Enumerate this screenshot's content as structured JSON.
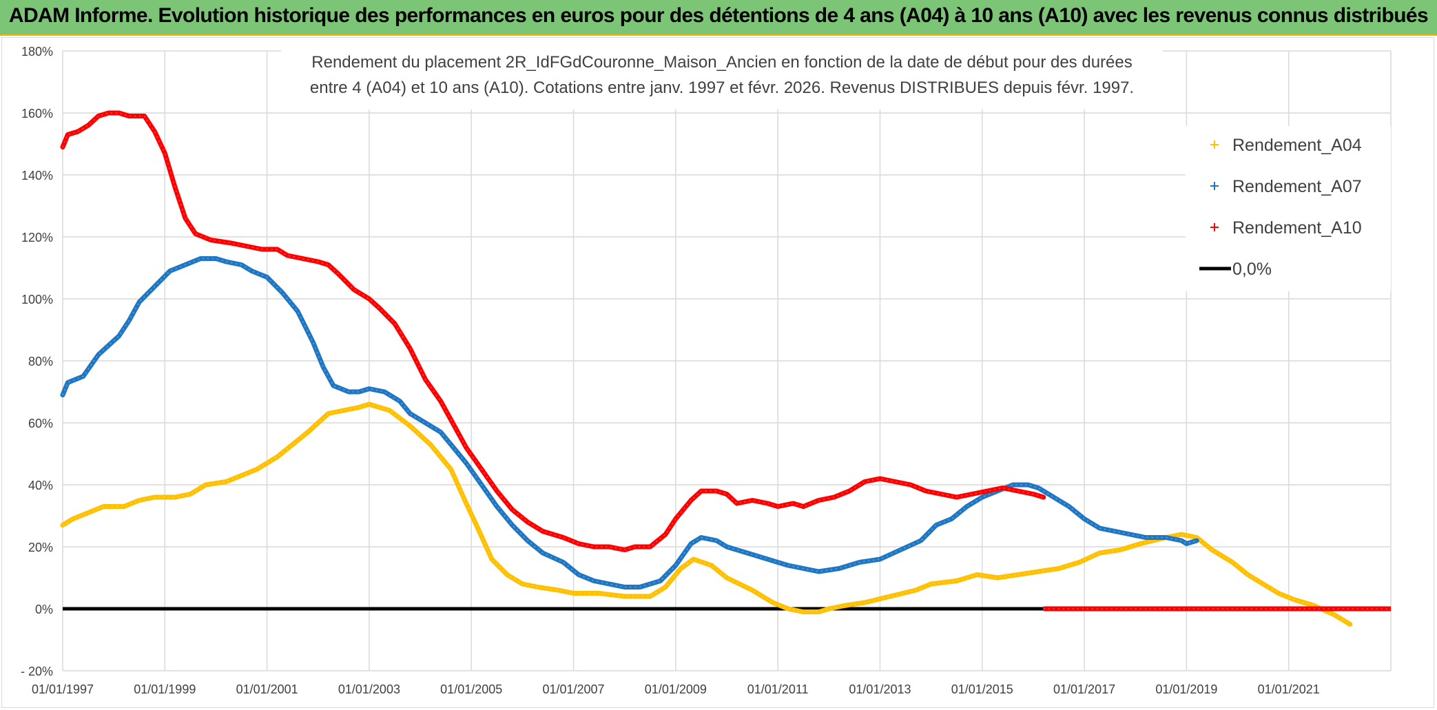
{
  "banner": {
    "title": "ADAM Informe. Evolution historique des performances en euros pour des détentions de 4 ans (A04) à 10 ans (A10) avec les revenus connus distribués"
  },
  "colors": {
    "banner_bg": "#7cc576",
    "a04": "#ffc000",
    "a07": "#1f77c4",
    "a10": "#ff0000",
    "zero": "#000000",
    "grid": "#d9d9d9"
  },
  "chart_data": {
    "type": "line",
    "title_lines": [
      "Rendement du placement 2R_IdFGdCouronne_Maison_Ancien en fonction de la date de début pour des durées",
      "entre 4 (A04) et 10 ans (A10). Cotations entre janv. 1997 et févr. 2026. Revenus DISTRIBUES depuis févr. 1997."
    ],
    "xlim": [
      1997.0,
      2023.0
    ],
    "ylim": [
      -20,
      180
    ],
    "y_ticks": [
      -20,
      0,
      20,
      40,
      60,
      80,
      100,
      120,
      140,
      160,
      180
    ],
    "y_tick_labels": [
      "- 20%",
      "0%",
      "20%",
      "40%",
      "60%",
      "80%",
      "100%",
      "120%",
      "140%",
      "160%",
      "180%"
    ],
    "x_ticks": [
      1997,
      1999,
      2001,
      2003,
      2005,
      2007,
      2009,
      2011,
      2013,
      2015,
      2017,
      2019,
      2021
    ],
    "x_tick_labels": [
      "01/01/1997",
      "01/01/1999",
      "01/01/2001",
      "01/01/2003",
      "01/01/2005",
      "01/01/2007",
      "01/01/2009",
      "01/01/2011",
      "01/01/2013",
      "01/01/2015",
      "01/01/2017",
      "01/01/2019",
      "01/01/2021"
    ],
    "series": [
      {
        "name": "Rendement_A04",
        "color": "#ffc000",
        "points": [
          [
            1997.0,
            27
          ],
          [
            1997.2,
            29
          ],
          [
            1997.5,
            31
          ],
          [
            1997.8,
            33
          ],
          [
            1998.2,
            33
          ],
          [
            1998.5,
            35
          ],
          [
            1998.8,
            36
          ],
          [
            1999.2,
            36
          ],
          [
            1999.5,
            37
          ],
          [
            1999.8,
            40
          ],
          [
            2000.2,
            41
          ],
          [
            2000.5,
            43
          ],
          [
            2000.8,
            45
          ],
          [
            2001.2,
            49
          ],
          [
            2001.5,
            53
          ],
          [
            2001.8,
            57
          ],
          [
            2002.2,
            63
          ],
          [
            2002.5,
            64
          ],
          [
            2002.8,
            65
          ],
          [
            2003.0,
            66
          ],
          [
            2003.4,
            64
          ],
          [
            2003.8,
            59
          ],
          [
            2004.2,
            53
          ],
          [
            2004.6,
            45
          ],
          [
            2004.9,
            34
          ],
          [
            2005.1,
            27
          ],
          [
            2005.4,
            16
          ],
          [
            2005.7,
            11
          ],
          [
            2006.0,
            8
          ],
          [
            2006.3,
            7
          ],
          [
            2006.7,
            6
          ],
          [
            2007.0,
            5
          ],
          [
            2007.5,
            5
          ],
          [
            2008.0,
            4
          ],
          [
            2008.5,
            4
          ],
          [
            2008.8,
            7
          ],
          [
            2009.1,
            13
          ],
          [
            2009.35,
            16
          ],
          [
            2009.7,
            14
          ],
          [
            2010.0,
            10
          ],
          [
            2010.5,
            6
          ],
          [
            2010.9,
            2
          ],
          [
            2011.2,
            0
          ],
          [
            2011.5,
            -1
          ],
          [
            2011.8,
            -1
          ],
          [
            2012.0,
            0
          ],
          [
            2012.3,
            1
          ],
          [
            2012.7,
            2
          ],
          [
            2013.2,
            4
          ],
          [
            2013.7,
            6
          ],
          [
            2014.0,
            8
          ],
          [
            2014.5,
            9
          ],
          [
            2014.9,
            11
          ],
          [
            2015.3,
            10
          ],
          [
            2015.7,
            11
          ],
          [
            2016.1,
            12
          ],
          [
            2016.5,
            13
          ],
          [
            2016.9,
            15
          ],
          [
            2017.3,
            18
          ],
          [
            2017.7,
            19
          ],
          [
            2018.1,
            21
          ],
          [
            2018.6,
            23
          ],
          [
            2018.9,
            24
          ],
          [
            2019.2,
            23
          ],
          [
            2019.5,
            19
          ],
          [
            2019.9,
            15
          ],
          [
            2020.2,
            11
          ],
          [
            2020.5,
            8
          ],
          [
            2020.8,
            5
          ],
          [
            2021.1,
            3
          ],
          [
            2021.5,
            1
          ],
          [
            2021.9,
            -2
          ],
          [
            2022.2,
            -5
          ]
        ]
      },
      {
        "name": "Rendement_A07",
        "color": "#1f77c4",
        "points": [
          [
            1997.0,
            69
          ],
          [
            1997.1,
            73
          ],
          [
            1997.4,
            75
          ],
          [
            1997.7,
            82
          ],
          [
            1997.9,
            85
          ],
          [
            1998.1,
            88
          ],
          [
            1998.3,
            93
          ],
          [
            1998.5,
            99
          ],
          [
            1998.8,
            104
          ],
          [
            1999.1,
            109
          ],
          [
            1999.4,
            111
          ],
          [
            1999.7,
            113
          ],
          [
            2000.0,
            113
          ],
          [
            2000.2,
            112
          ],
          [
            2000.5,
            111
          ],
          [
            2000.7,
            109
          ],
          [
            2001.0,
            107
          ],
          [
            2001.3,
            102
          ],
          [
            2001.6,
            96
          ],
          [
            2001.9,
            86
          ],
          [
            2002.1,
            78
          ],
          [
            2002.3,
            72
          ],
          [
            2002.6,
            70
          ],
          [
            2002.8,
            70
          ],
          [
            2003.0,
            71
          ],
          [
            2003.3,
            70
          ],
          [
            2003.6,
            67
          ],
          [
            2003.8,
            63
          ],
          [
            2004.1,
            60
          ],
          [
            2004.4,
            57
          ],
          [
            2004.7,
            51
          ],
          [
            2004.9,
            47
          ],
          [
            2005.2,
            40
          ],
          [
            2005.5,
            33
          ],
          [
            2005.8,
            27
          ],
          [
            2006.1,
            22
          ],
          [
            2006.4,
            18
          ],
          [
            2006.8,
            15
          ],
          [
            2007.1,
            11
          ],
          [
            2007.4,
            9
          ],
          [
            2007.7,
            8
          ],
          [
            2008.0,
            7
          ],
          [
            2008.3,
            7
          ],
          [
            2008.7,
            9
          ],
          [
            2009.0,
            14
          ],
          [
            2009.3,
            21
          ],
          [
            2009.5,
            23
          ],
          [
            2009.8,
            22
          ],
          [
            2010.0,
            20
          ],
          [
            2010.4,
            18
          ],
          [
            2010.8,
            16
          ],
          [
            2011.2,
            14
          ],
          [
            2011.5,
            13
          ],
          [
            2011.8,
            12
          ],
          [
            2012.2,
            13
          ],
          [
            2012.6,
            15
          ],
          [
            2013.0,
            16
          ],
          [
            2013.4,
            19
          ],
          [
            2013.8,
            22
          ],
          [
            2014.1,
            27
          ],
          [
            2014.4,
            29
          ],
          [
            2014.7,
            33
          ],
          [
            2015.0,
            36
          ],
          [
            2015.3,
            38
          ],
          [
            2015.6,
            40
          ],
          [
            2015.9,
            40
          ],
          [
            2016.1,
            39
          ],
          [
            2016.4,
            36
          ],
          [
            2016.7,
            33
          ],
          [
            2017.0,
            29
          ],
          [
            2017.3,
            26
          ],
          [
            2017.6,
            25
          ],
          [
            2017.9,
            24
          ],
          [
            2018.2,
            23
          ],
          [
            2018.6,
            23
          ],
          [
            2018.9,
            22
          ],
          [
            2019.0,
            21
          ],
          [
            2019.2,
            22
          ]
        ]
      },
      {
        "name": "Rendement_A10",
        "color": "#ff0000",
        "points": [
          [
            1997.0,
            149
          ],
          [
            1997.1,
            153
          ],
          [
            1997.3,
            154
          ],
          [
            1997.5,
            156
          ],
          [
            1997.7,
            159
          ],
          [
            1997.9,
            160
          ],
          [
            1998.1,
            160
          ],
          [
            1998.3,
            159
          ],
          [
            1998.6,
            159
          ],
          [
            1998.8,
            154
          ],
          [
            1999.0,
            147
          ],
          [
            1999.2,
            136
          ],
          [
            1999.4,
            126
          ],
          [
            1999.6,
            121
          ],
          [
            1999.9,
            119
          ],
          [
            2000.3,
            118
          ],
          [
            2000.6,
            117
          ],
          [
            2000.9,
            116
          ],
          [
            2001.2,
            116
          ],
          [
            2001.4,
            114
          ],
          [
            2001.7,
            113
          ],
          [
            2002.0,
            112
          ],
          [
            2002.2,
            111
          ],
          [
            2002.4,
            108
          ],
          [
            2002.7,
            103
          ],
          [
            2003.0,
            100
          ],
          [
            2003.2,
            97
          ],
          [
            2003.5,
            92
          ],
          [
            2003.8,
            84
          ],
          [
            2004.1,
            74
          ],
          [
            2004.4,
            67
          ],
          [
            2004.7,
            58
          ],
          [
            2004.9,
            52
          ],
          [
            2005.2,
            45
          ],
          [
            2005.5,
            38
          ],
          [
            2005.8,
            32
          ],
          [
            2006.1,
            28
          ],
          [
            2006.4,
            25
          ],
          [
            2006.8,
            23
          ],
          [
            2007.1,
            21
          ],
          [
            2007.4,
            20
          ],
          [
            2007.7,
            20
          ],
          [
            2008.0,
            19
          ],
          [
            2008.2,
            20
          ],
          [
            2008.5,
            20
          ],
          [
            2008.8,
            24
          ],
          [
            2009.0,
            29
          ],
          [
            2009.3,
            35
          ],
          [
            2009.5,
            38
          ],
          [
            2009.8,
            38
          ],
          [
            2010.0,
            37
          ],
          [
            2010.2,
            34
          ],
          [
            2010.5,
            35
          ],
          [
            2010.8,
            34
          ],
          [
            2011.0,
            33
          ],
          [
            2011.3,
            34
          ],
          [
            2011.5,
            33
          ],
          [
            2011.8,
            35
          ],
          [
            2012.1,
            36
          ],
          [
            2012.4,
            38
          ],
          [
            2012.7,
            41
          ],
          [
            2013.0,
            42
          ],
          [
            2013.3,
            41
          ],
          [
            2013.6,
            40
          ],
          [
            2013.9,
            38
          ],
          [
            2014.2,
            37
          ],
          [
            2014.5,
            36
          ],
          [
            2014.8,
            37
          ],
          [
            2015.1,
            38
          ],
          [
            2015.4,
            39
          ],
          [
            2015.7,
            38
          ],
          [
            2016.0,
            37
          ],
          [
            2016.2,
            36
          ]
        ]
      }
    ],
    "zero_line": {
      "name": "0,0%",
      "color": "#000000",
      "x_range": [
        1997.0,
        2016.2
      ]
    },
    "a10_zero_tail": {
      "x_range": [
        2016.2,
        2023.0
      ],
      "value": 0
    },
    "legend": {
      "position": "top-right",
      "items": [
        "Rendement_A04",
        "Rendement_A07",
        "Rendement_A10",
        "0,0%"
      ]
    }
  }
}
